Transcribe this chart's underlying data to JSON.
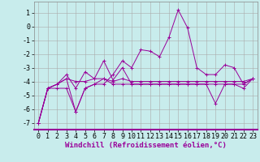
{
  "xlabel": "Windchill (Refroidissement éolien,°C)",
  "background_color": "#c8ecec",
  "grid_color": "#aaaaaa",
  "line_color": "#990099",
  "x_hours": [
    0,
    1,
    2,
    3,
    4,
    5,
    6,
    7,
    8,
    9,
    10,
    11,
    12,
    13,
    14,
    15,
    16,
    17,
    18,
    19,
    20,
    21,
    22,
    23
  ],
  "series": [
    [
      -7.0,
      -4.5,
      -4.2,
      -3.8,
      -4.0,
      -4.0,
      -3.8,
      -3.8,
      -4.0,
      -3.8,
      -4.0,
      -4.0,
      -4.0,
      -4.0,
      -4.0,
      -4.0,
      -4.0,
      -4.0,
      -4.0,
      -4.0,
      -4.0,
      -4.0,
      -4.0,
      -3.8
    ],
    [
      -7.0,
      -4.5,
      -4.2,
      -3.8,
      -6.2,
      -4.5,
      -4.2,
      -4.2,
      -3.5,
      -2.5,
      -3.0,
      -1.7,
      -1.8,
      -2.2,
      -0.8,
      1.2,
      -0.1,
      -3.0,
      -3.5,
      -3.5,
      -2.8,
      -3.0,
      -4.2,
      -3.8
    ],
    [
      -7.0,
      -4.5,
      -4.2,
      -3.5,
      -4.5,
      -3.3,
      -3.8,
      -2.5,
      -3.9,
      -3.0,
      -4.2,
      -4.2,
      -4.2,
      -4.2,
      -4.2,
      -4.2,
      -4.2,
      -4.2,
      -4.2,
      -5.6,
      -4.2,
      -4.2,
      -4.5,
      -3.8
    ],
    [
      -7.0,
      -4.5,
      -4.5,
      -4.5,
      -6.2,
      -4.5,
      -4.2,
      -3.8,
      -4.2,
      -4.2,
      -4.2,
      -4.2,
      -4.2,
      -4.2,
      -4.2,
      -4.2,
      -4.2,
      -4.2,
      -4.2,
      -4.2,
      -4.2,
      -4.2,
      -4.2,
      -3.8
    ]
  ],
  "ylim": [
    -7.5,
    1.8
  ],
  "yticks": [
    -7,
    -6,
    -5,
    -4,
    -3,
    -2,
    -1,
    0,
    1
  ],
  "xticks": [
    0,
    1,
    2,
    3,
    4,
    5,
    6,
    7,
    8,
    9,
    10,
    11,
    12,
    13,
    14,
    15,
    16,
    17,
    18,
    19,
    20,
    21,
    22,
    23
  ],
  "xlabel_fontsize": 6.5,
  "tick_fontsize": 6.0,
  "linewidth": 0.7,
  "markersize": 2.5
}
